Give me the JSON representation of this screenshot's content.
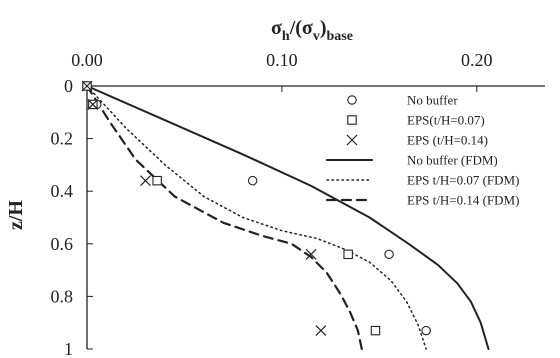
{
  "chart_data": {
    "type": "scatter",
    "title": "",
    "xlabel_parts": {
      "sigma": "σ",
      "h_sub": "h",
      "mid": "/(σ",
      "v_sub": "v",
      "close": ")",
      "base_sub": "base"
    },
    "ylabel": "z/H",
    "xlim": [
      0.0,
      0.235
    ],
    "ylim": [
      0.0,
      1.0
    ],
    "y_inverted": true,
    "x_axis_position": "top",
    "x_ticks": [
      0.0,
      0.1,
      0.2
    ],
    "x_tick_labels": [
      "0.00",
      "0.10",
      "0.20"
    ],
    "y_ticks": [
      0,
      0.2,
      0.4,
      0.6,
      0.8,
      1
    ],
    "y_tick_labels": [
      "0",
      "0.2",
      "0.4",
      "0.6",
      "0.8",
      "1"
    ],
    "grid": false,
    "legend_position": "top-right",
    "series": [
      {
        "name": "No buffer",
        "kind": "points",
        "marker": "circle",
        "x": [
          0.0,
          0.005,
          0.085,
          0.155,
          0.174
        ],
        "y": [
          0.0,
          0.07,
          0.36,
          0.64,
          0.93
        ]
      },
      {
        "name": "EPS(t/H=0.07)",
        "kind": "points",
        "marker": "square",
        "x": [
          0.0,
          0.003,
          0.036,
          0.134,
          0.148
        ],
        "y": [
          0.0,
          0.07,
          0.36,
          0.64,
          0.93
        ]
      },
      {
        "name": "EPS (t/H=0.14)",
        "kind": "points",
        "marker": "x",
        "x": [
          0.0,
          0.003,
          0.03,
          0.115,
          0.12
        ],
        "y": [
          0.0,
          0.07,
          0.36,
          0.64,
          0.93
        ]
      },
      {
        "name": "No buffer (FDM)",
        "kind": "line",
        "dash": "solid",
        "x": [
          0.0,
          0.04,
          0.08,
          0.115,
          0.145,
          0.165,
          0.18,
          0.19,
          0.197,
          0.202,
          0.206
        ],
        "y": [
          0.0,
          0.13,
          0.26,
          0.38,
          0.5,
          0.6,
          0.68,
          0.75,
          0.82,
          0.9,
          1.0
        ]
      },
      {
        "name": "EPS t/H=0.07 (FDM)",
        "kind": "line",
        "dash": "dotted",
        "x": [
          0.0,
          0.02,
          0.04,
          0.06,
          0.08,
          0.1,
          0.118,
          0.132,
          0.145,
          0.156,
          0.164,
          0.17,
          0.174
        ],
        "y": [
          0.0,
          0.16,
          0.3,
          0.42,
          0.5,
          0.55,
          0.58,
          0.62,
          0.67,
          0.74,
          0.82,
          0.91,
          1.0
        ]
      },
      {
        "name": "EPS t/H=0.14 (FDM)",
        "kind": "line",
        "dash": "dashed",
        "x": [
          0.0,
          0.012,
          0.025,
          0.045,
          0.07,
          0.09,
          0.105,
          0.115,
          0.123,
          0.13,
          0.135,
          0.139,
          0.141
        ],
        "y": [
          0.0,
          0.14,
          0.28,
          0.42,
          0.52,
          0.57,
          0.6,
          0.65,
          0.71,
          0.79,
          0.86,
          0.93,
          1.0
        ]
      }
    ]
  }
}
